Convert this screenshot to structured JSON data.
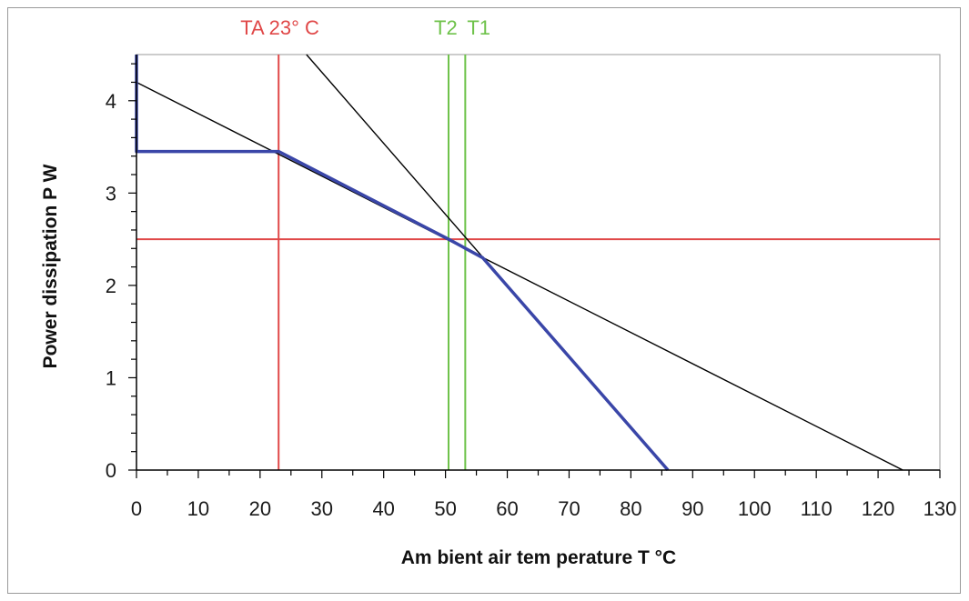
{
  "chart_data": {
    "type": "line",
    "title": "",
    "xlabel": "Am bient air tem perature T   °C",
    "ylabel": "Power dissipation P   W",
    "xlim": [
      0,
      130
    ],
    "ylim": [
      0,
      4.5
    ],
    "xticks": [
      0,
      10,
      20,
      30,
      40,
      50,
      60,
      70,
      80,
      90,
      100,
      110,
      120,
      130
    ],
    "yticks": [
      0,
      1,
      2,
      3,
      4
    ],
    "grid": false,
    "legend": "none",
    "series": [
      {
        "color": "#000000",
        "points": [
          [
            0,
            4.2
          ],
          [
            124,
            0
          ]
        ]
      },
      {
        "color": "#000000",
        "points": [
          [
            27.5,
            4.5
          ],
          [
            86,
            0
          ]
        ]
      },
      {
        "color": "#3a46a8",
        "points": [
          [
            0,
            4.5
          ],
          [
            0,
            3.45
          ],
          [
            23,
            3.45
          ],
          [
            50.5,
            2.5
          ],
          [
            56,
            2.3
          ],
          [
            86,
            0
          ]
        ]
      }
    ],
    "reference_lines": [
      {
        "orientation": "vertical",
        "x": 23,
        "label": "TA 23° C",
        "color": "#e04848"
      },
      {
        "orientation": "horizontal",
        "y": 2.5,
        "label": "",
        "color": "#e04848"
      },
      {
        "orientation": "vertical",
        "x": 50.5,
        "label": "T2",
        "color": "#6ec24a"
      },
      {
        "orientation": "vertical",
        "x": 53.2,
        "label": "T1",
        "color": "#6ec24a"
      }
    ]
  }
}
